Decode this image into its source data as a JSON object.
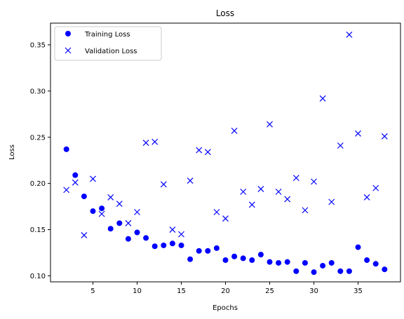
{
  "chart_data": {
    "type": "scatter",
    "title": "Loss",
    "xlabel": "Epochs",
    "ylabel": "Loss",
    "xlim": [
      0.2,
      39.8
    ],
    "ylim": [
      0.0935,
      0.3735
    ],
    "xticks": [
      5,
      10,
      15,
      20,
      25,
      30,
      35
    ],
    "yticks": [
      0.1,
      0.15,
      0.2,
      0.25,
      0.3,
      0.35
    ],
    "legend": "upper-left",
    "grid": false,
    "series": [
      {
        "name": "Training Loss",
        "marker": "circle",
        "color": "#0000ff",
        "x": [
          2,
          3,
          4,
          5,
          6,
          7,
          8,
          9,
          10,
          11,
          12,
          13,
          14,
          15,
          16,
          17,
          18,
          19,
          20,
          21,
          22,
          23,
          24,
          25,
          26,
          27,
          28,
          29,
          30,
          31,
          32,
          33,
          34,
          35,
          36,
          37,
          38
        ],
        "y": [
          0.237,
          0.209,
          0.186,
          0.17,
          0.173,
          0.151,
          0.157,
          0.14,
          0.147,
          0.141,
          0.132,
          0.133,
          0.135,
          0.133,
          0.118,
          0.127,
          0.127,
          0.13,
          0.117,
          0.121,
          0.119,
          0.117,
          0.123,
          0.115,
          0.114,
          0.115,
          0.105,
          0.114,
          0.104,
          0.111,
          0.114,
          0.105,
          0.105,
          0.131,
          0.117,
          0.113,
          0.107
        ]
      },
      {
        "name": "Validation Loss",
        "marker": "x",
        "color": "#0000ff",
        "x": [
          2,
          3,
          4,
          5,
          6,
          7,
          8,
          9,
          10,
          11,
          12,
          13,
          14,
          15,
          16,
          17,
          18,
          19,
          20,
          21,
          22,
          23,
          24,
          25,
          26,
          27,
          28,
          29,
          30,
          31,
          32,
          33,
          34,
          35,
          36,
          37,
          38
        ],
        "y": [
          0.193,
          0.201,
          0.144,
          0.205,
          0.167,
          0.185,
          0.178,
          0.157,
          0.169,
          0.244,
          0.245,
          0.199,
          0.15,
          0.145,
          0.203,
          0.236,
          0.234,
          0.169,
          0.162,
          0.257,
          0.191,
          0.177,
          0.194,
          0.264,
          0.191,
          0.183,
          0.206,
          0.171,
          0.202,
          0.292,
          0.18,
          0.241,
          0.361,
          0.254,
          0.185,
          0.195,
          0.251
        ]
      }
    ]
  }
}
